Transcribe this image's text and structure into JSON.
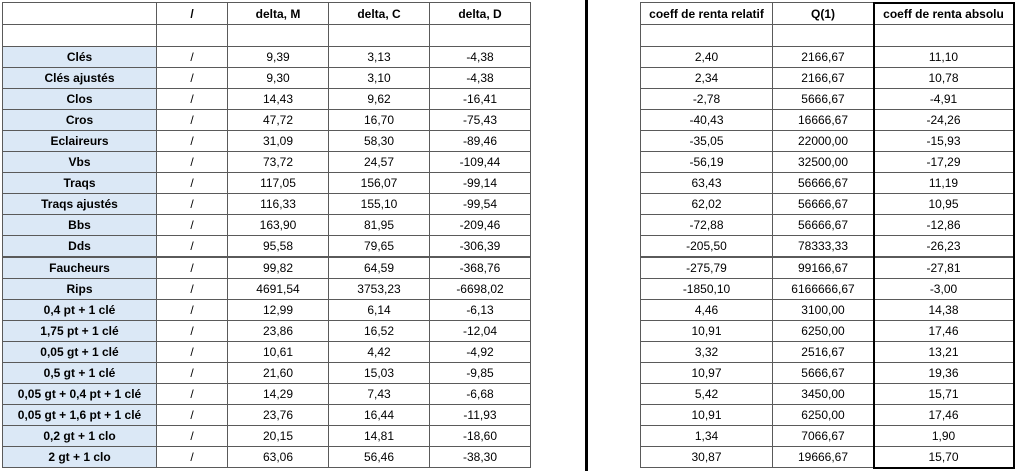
{
  "left_table": {
    "headers": [
      "/",
      "delta, M",
      "delta, C",
      "delta, D"
    ],
    "rows": [
      [
        "Clés",
        "/",
        "9,39",
        "3,13",
        "-4,38"
      ],
      [
        "Clés ajustés",
        "/",
        "9,30",
        "3,10",
        "-4,38"
      ],
      [
        "Clos",
        "/",
        "14,43",
        "9,62",
        "-16,41"
      ],
      [
        "Cros",
        "/",
        "47,72",
        "16,70",
        "-75,43"
      ],
      [
        "Eclaireurs",
        "/",
        "31,09",
        "58,30",
        "-89,46"
      ],
      [
        "Vbs",
        "/",
        "73,72",
        "24,57",
        "-109,44"
      ],
      [
        "Traqs",
        "/",
        "117,05",
        "156,07",
        "-99,14"
      ],
      [
        "Traqs ajustés",
        "/",
        "116,33",
        "155,10",
        "-99,54"
      ],
      [
        "Bbs",
        "/",
        "163,90",
        "81,95",
        "-209,46"
      ],
      [
        "Dds",
        "/",
        "95,58",
        "79,65",
        "-306,39"
      ],
      [
        "Faucheurs",
        "/",
        "99,82",
        "64,59",
        "-368,76"
      ],
      [
        "Rips",
        "/",
        "4691,54",
        "3753,23",
        "-6698,02"
      ],
      [
        "0,4 pt + 1 clé",
        "/",
        "12,99",
        "6,14",
        "-6,13"
      ],
      [
        "1,75 pt + 1 clé",
        "/",
        "23,86",
        "16,52",
        "-12,04"
      ],
      [
        "0,05 gt + 1 clé",
        "/",
        "10,61",
        "4,42",
        "-4,92"
      ],
      [
        "0,5 gt + 1 clé",
        "/",
        "21,60",
        "15,03",
        "-9,85"
      ],
      [
        "0,05 gt + 0,4 pt + 1 clé",
        "/",
        "14,29",
        "7,43",
        "-6,68"
      ],
      [
        "0,05 gt + 1,6 pt + 1 clé",
        "/",
        "23,76",
        "16,44",
        "-11,93"
      ],
      [
        "0,2 gt + 1 clo",
        "/",
        "20,15",
        "14,81",
        "-18,60"
      ],
      [
        "2 gt + 1 clo",
        "/",
        "63,06",
        "56,46",
        "-38,30"
      ]
    ]
  },
  "right_table": {
    "headers": [
      "coeff de renta relatif",
      "Q(1)",
      "coeff de renta absolu"
    ],
    "rows": [
      [
        "2,40",
        "2166,67",
        "11,10"
      ],
      [
        "2,34",
        "2166,67",
        "10,78"
      ],
      [
        "-2,78",
        "5666,67",
        "-4,91"
      ],
      [
        "-40,43",
        "16666,67",
        "-24,26"
      ],
      [
        "-35,05",
        "22000,00",
        "-15,93"
      ],
      [
        "-56,19",
        "32500,00",
        "-17,29"
      ],
      [
        "63,43",
        "56666,67",
        "11,19"
      ],
      [
        "62,02",
        "56666,67",
        "10,95"
      ],
      [
        "-72,88",
        "56666,67",
        "-12,86"
      ],
      [
        "-205,50",
        "78333,33",
        "-26,23"
      ],
      [
        "-275,79",
        "99166,67",
        "-27,81"
      ],
      [
        "-1850,10",
        "6166666,67",
        "-3,00"
      ],
      [
        "4,46",
        "3100,00",
        "14,38"
      ],
      [
        "10,91",
        "6250,00",
        "17,46"
      ],
      [
        "3,32",
        "2516,67",
        "13,21"
      ],
      [
        "10,97",
        "5666,67",
        "19,36"
      ],
      [
        "5,42",
        "3450,00",
        "15,71"
      ],
      [
        "10,91",
        "6250,00",
        "17,46"
      ],
      [
        "1,34",
        "7066,67",
        "1,90"
      ],
      [
        "30,87",
        "19666,67",
        "15,70"
      ]
    ]
  }
}
